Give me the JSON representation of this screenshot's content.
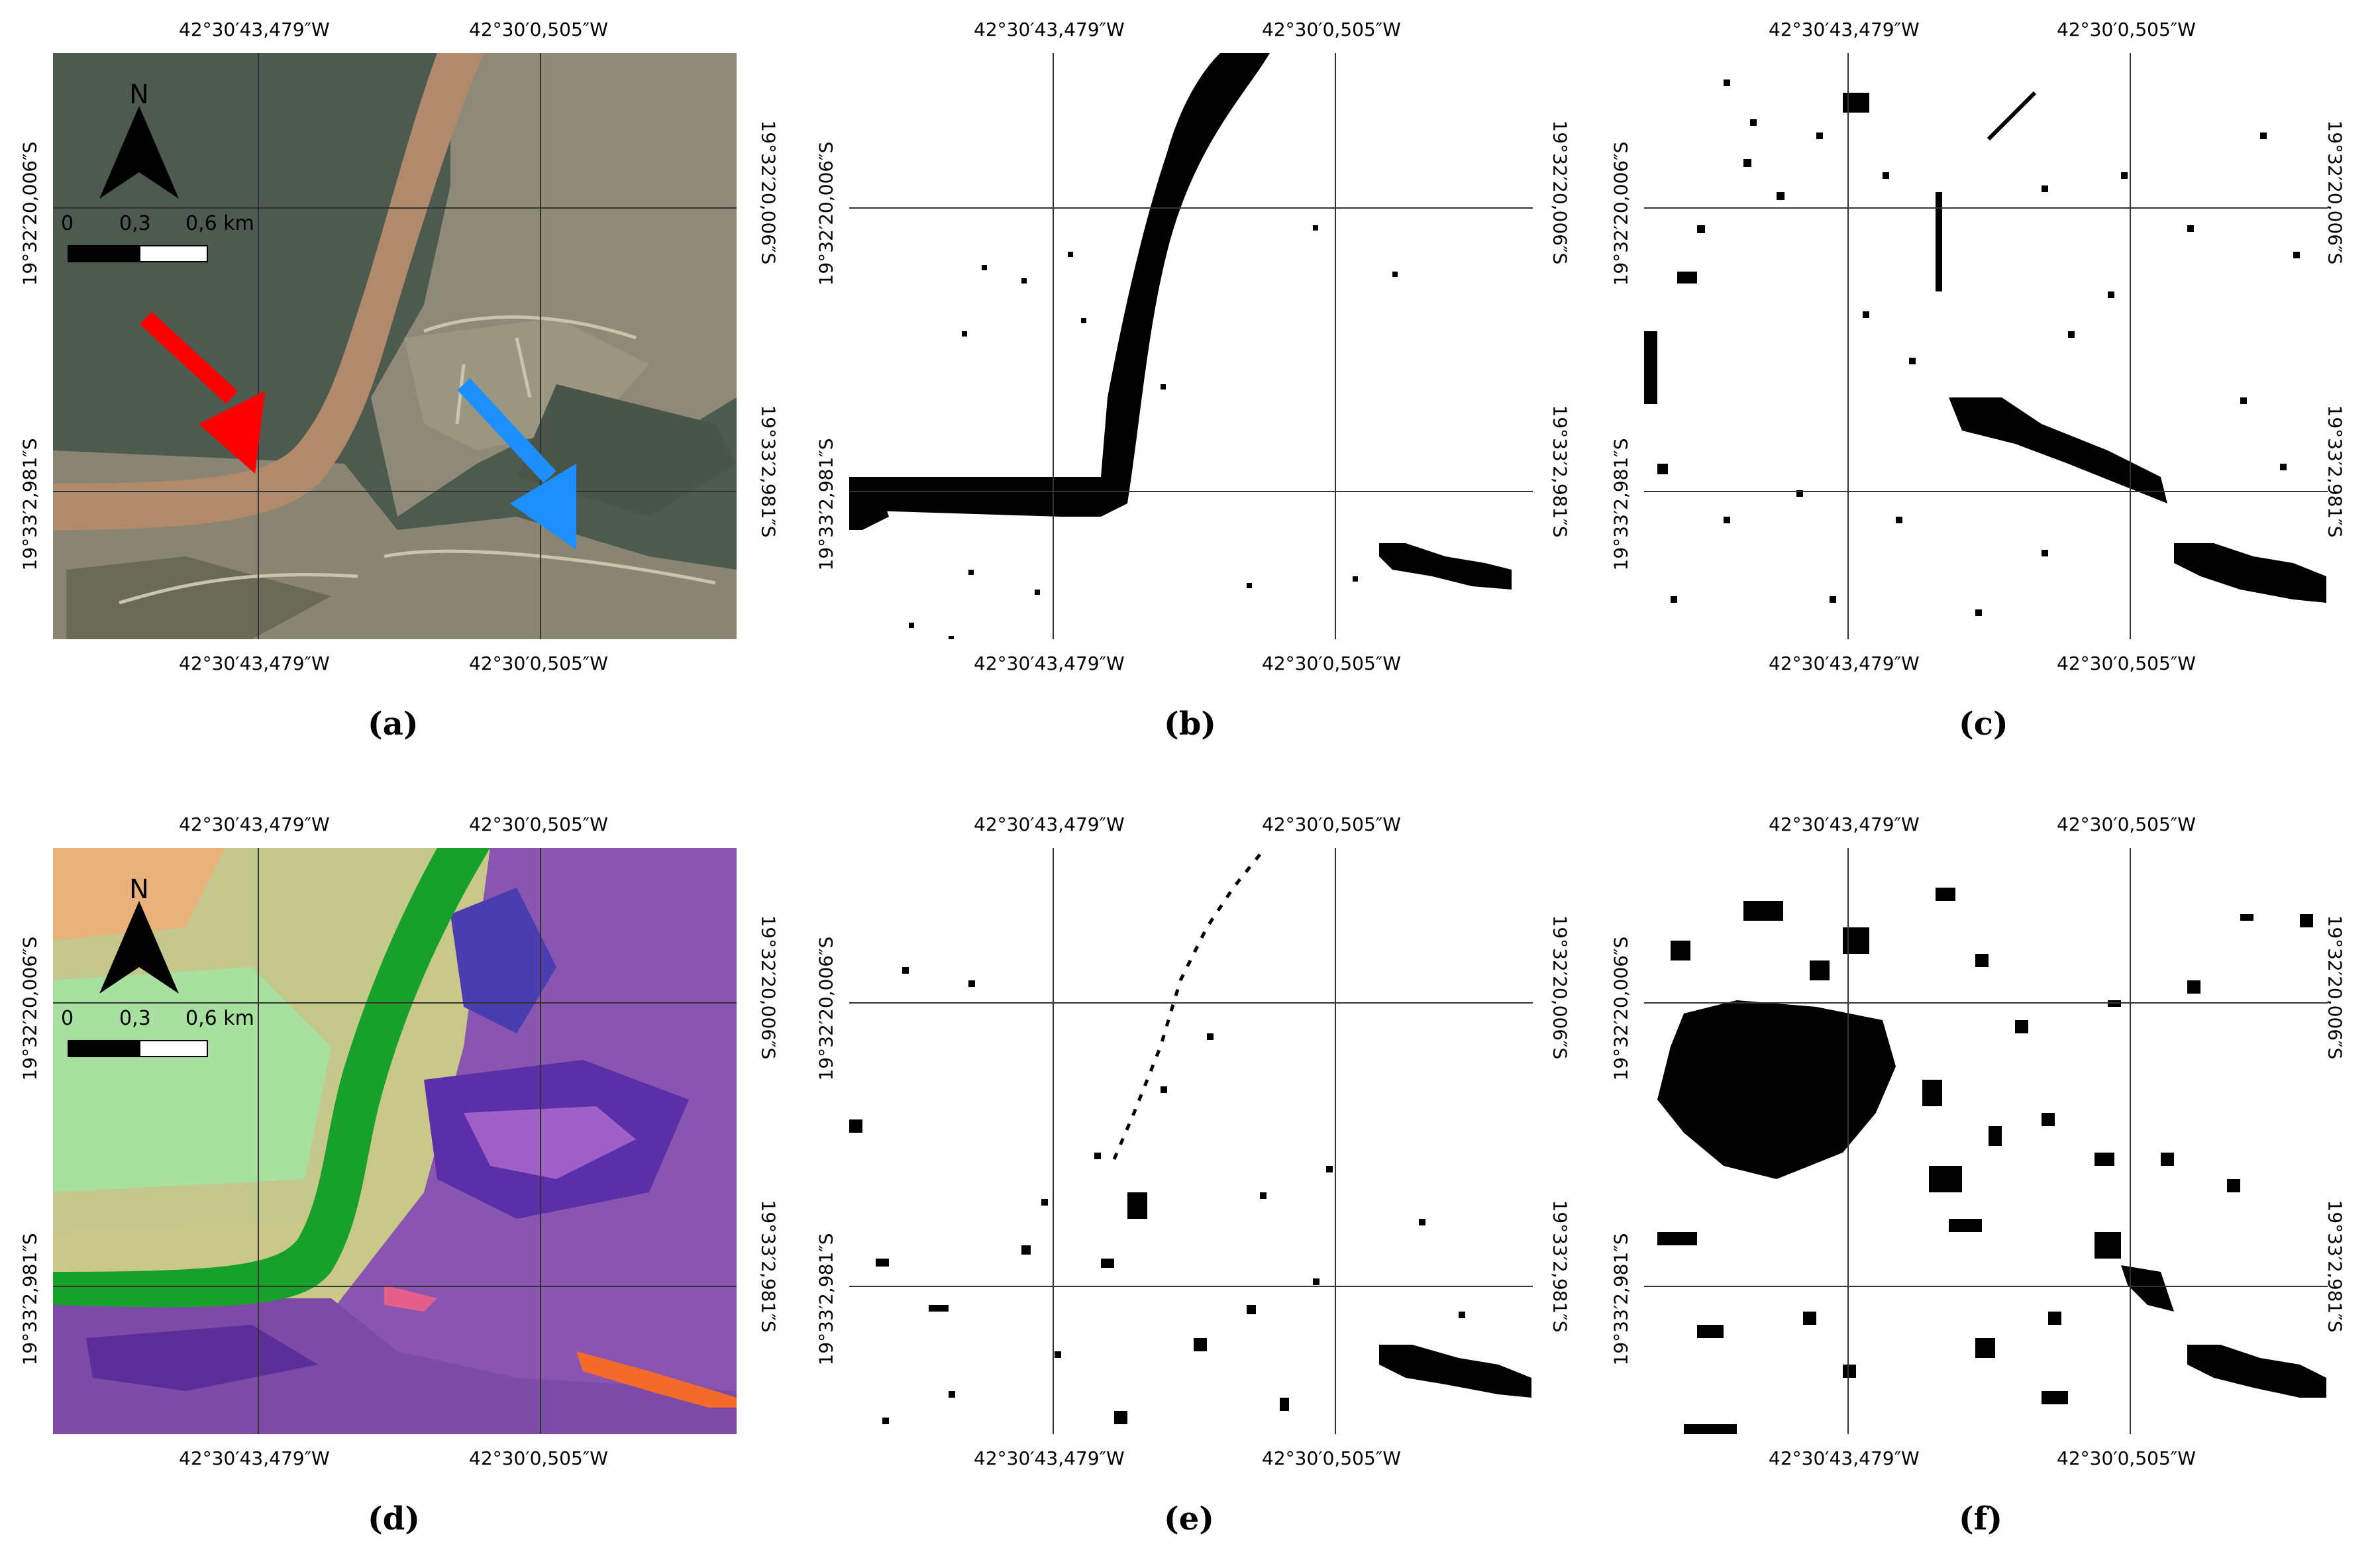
{
  "figure": {
    "lon_labels": [
      "42°30′43,479″W",
      "42°30′0,505″W"
    ],
    "lat_labels": [
      "19°32′20,006″S",
      "19°33′2,981″S"
    ],
    "north_label": "N",
    "scale_labels": [
      "0",
      "0,3",
      "0,6 km"
    ],
    "captions": [
      "(a)",
      "(b)",
      "(c)",
      "(d)",
      "(e)",
      "(f)"
    ]
  },
  "panels": [
    {
      "id": "a",
      "kind": "rgb-satellite",
      "arrows": [
        {
          "color": "#ff0000"
        },
        {
          "color": "#1e8fff"
        }
      ]
    },
    {
      "id": "b",
      "kind": "binary-map"
    },
    {
      "id": "c",
      "kind": "binary-map"
    },
    {
      "id": "d",
      "kind": "false-color-composite"
    },
    {
      "id": "e",
      "kind": "binary-map"
    },
    {
      "id": "f",
      "kind": "binary-map"
    }
  ],
  "colors": {
    "river_mud": "#b08a6a",
    "forest": "#4d5a4f",
    "pasture": "#8e8a77",
    "fc_green": "#18a12a",
    "fc_purple": "#7a3fa3",
    "fc_orange": "#f46a2a",
    "fc_lightgreen": "#9ee29a"
  }
}
